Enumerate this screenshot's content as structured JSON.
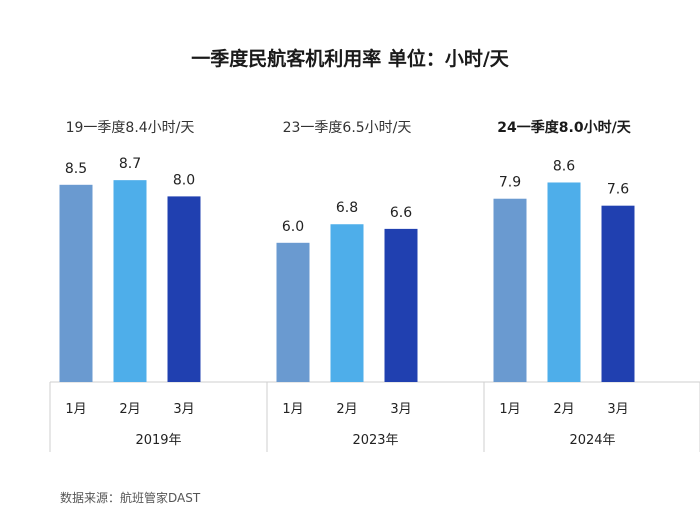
{
  "title": "一季度民航客机利用率 单位：小时/天",
  "source": "数据来源：航班管家DAST",
  "colors": {
    "jan": "#6a9ad0",
    "feb": "#4eaeea",
    "mar": "#2040b0",
    "axis": "#cfcfcf",
    "label": "#222222"
  },
  "chart_data": {
    "type": "bar",
    "title": "一季度民航客机利用率 单位：小时/天",
    "unit": "小时/天",
    "categories": [
      "1月",
      "2月",
      "3月"
    ],
    "groups": [
      {
        "year": "2019年",
        "subtitle": "19一季度8.4小时/天",
        "subtitle_bold": false,
        "values": [
          8.5,
          8.7,
          8.0
        ]
      },
      {
        "year": "2023年",
        "subtitle": "23一季度6.5小时/天",
        "subtitle_bold": false,
        "values": [
          6.0,
          6.8,
          6.6
        ]
      },
      {
        "year": "2024年",
        "subtitle": "24一季度8.0小时/天",
        "subtitle_bold": true,
        "values": [
          7.9,
          8.6,
          7.6
        ]
      }
    ],
    "ylim": [
      0,
      10
    ],
    "grid": false,
    "legend": "none"
  }
}
